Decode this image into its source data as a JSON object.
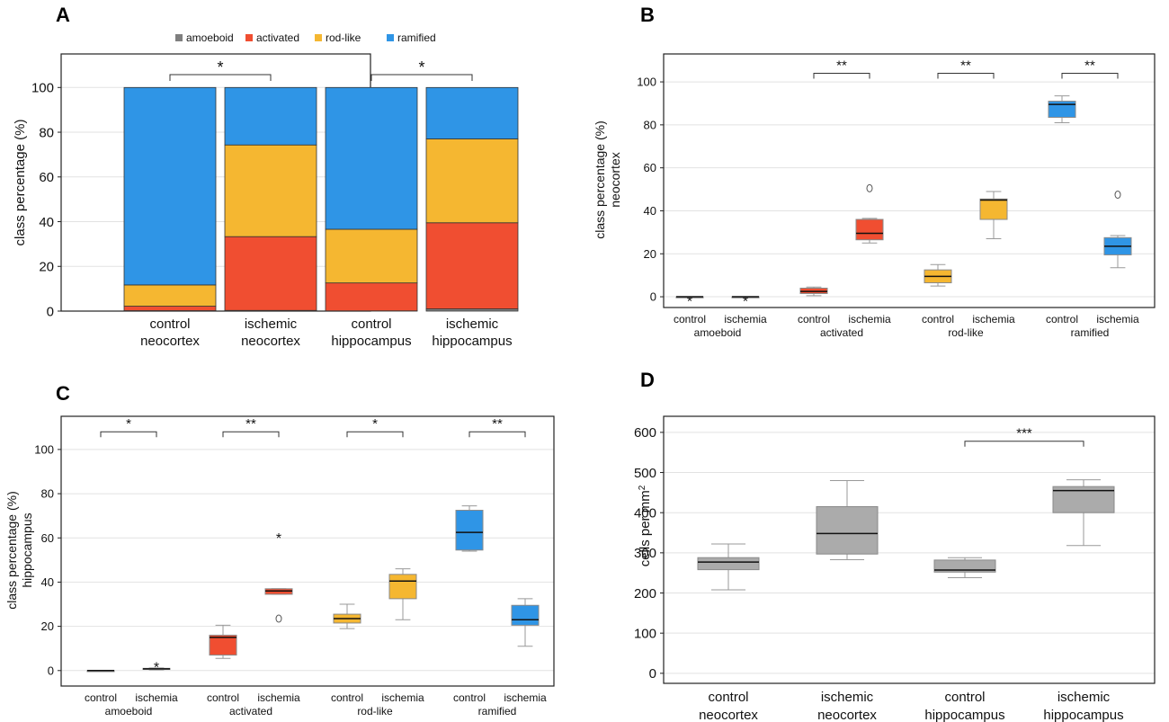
{
  "colors": {
    "amoeboid": "#7f7f7f",
    "activated": "#f04e31",
    "rod_like": "#f5b731",
    "ramified": "#2f95e6",
    "gray_box": "#ababab"
  },
  "chart_data": [
    {
      "id": "A",
      "type": "bar",
      "stacked": true,
      "letter": "A",
      "ylabel": "class percentage (%)",
      "ylim": [
        0,
        115
      ],
      "yticks": [
        0,
        20,
        40,
        60,
        80,
        100
      ],
      "legend_title": "",
      "legend": [
        {
          "key": "amoeboid",
          "label": "amoeboid"
        },
        {
          "key": "activated",
          "label": "activated"
        },
        {
          "key": "rod_like",
          "label": "rod-like"
        },
        {
          "key": "ramified",
          "label": "ramified"
        }
      ],
      "categories": [
        {
          "line1": "control",
          "line2": "neocortex"
        },
        {
          "line1": "ischemic",
          "line2": "neocortex"
        },
        {
          "line1": "control",
          "line2": "hippocampus"
        },
        {
          "line1": "ischemic",
          "line2": "hippocampus"
        }
      ],
      "series": [
        {
          "name": "amoeboid",
          "values": [
            0.2,
            0.3,
            0.1,
            1.0
          ]
        },
        {
          "name": "activated",
          "values": [
            2.0,
            33.0,
            12.5,
            38.5
          ]
        },
        {
          "name": "rod-like",
          "values": [
            9.5,
            41.0,
            24.0,
            37.5
          ]
        },
        {
          "name": "ramified",
          "values": [
            88.3,
            25.7,
            63.4,
            23.0
          ]
        }
      ],
      "significance": [
        {
          "from": 0,
          "to": 1,
          "label": "*"
        },
        {
          "from": 2,
          "to": 3,
          "label": "*"
        }
      ]
    },
    {
      "id": "B",
      "type": "box",
      "letter": "B",
      "ylabel": "class percentage (%)",
      "ylabel2": "neocortex",
      "ylim": [
        -5,
        113
      ],
      "yticks": [
        0,
        20,
        40,
        60,
        80,
        100
      ],
      "boxes": [
        {
          "x": "control",
          "min": 0,
          "q1": 0,
          "median": 0,
          "q3": 0,
          "max": 0,
          "color": "amoeboid",
          "marker": "*",
          "marker_y": -1
        },
        {
          "x": "ischemia",
          "min": 0,
          "q1": 0,
          "median": 0,
          "q3": 0,
          "max": 0,
          "color": "amoeboid",
          "marker": "*",
          "marker_y": -1
        },
        {
          "x": "control",
          "min": 0.5,
          "q1": 1.5,
          "median": 2.5,
          "q3": 4,
          "max": 4.5,
          "color": "activated"
        },
        {
          "x": "ischemia",
          "min": 25,
          "q1": 26.5,
          "median": 29.5,
          "q3": 36,
          "max": 36.5,
          "color": "activated",
          "outlier": 50.5
        },
        {
          "x": "control",
          "min": 5,
          "q1": 6.5,
          "median": 9.5,
          "q3": 12.5,
          "max": 15,
          "color": "rod_like"
        },
        {
          "x": "ischemia",
          "min": 27,
          "q1": 36,
          "median": 45,
          "q3": 45.5,
          "max": 49,
          "color": "rod_like"
        },
        {
          "x": "control",
          "min": 81,
          "q1": 83.5,
          "median": 89.5,
          "q3": 91,
          "max": 93.5,
          "color": "ramified"
        },
        {
          "x": "ischemia",
          "min": 13.5,
          "q1": 19.5,
          "median": 23.5,
          "q3": 27.5,
          "max": 28.5,
          "color": "ramified",
          "outlier": 47.5
        }
      ],
      "groups": [
        "amoeboid",
        "activated",
        "rod-like",
        "ramified"
      ],
      "significance": [
        {
          "from": 2,
          "to": 3,
          "label": "**",
          "y": 104
        },
        {
          "from": 4,
          "to": 5,
          "label": "**",
          "y": 104
        },
        {
          "from": 6,
          "to": 7,
          "label": "**",
          "y": 104
        }
      ]
    },
    {
      "id": "C",
      "type": "box",
      "letter": "C",
      "ylabel": "class percentage (%)",
      "ylabel2": "hippocampus",
      "ylim": [
        -7,
        115
      ],
      "yticks": [
        0,
        20,
        40,
        60,
        80,
        100
      ],
      "boxes": [
        {
          "x": "control",
          "min": 0,
          "q1": 0,
          "median": 0,
          "q3": 0,
          "max": 0,
          "color": "amoeboid"
        },
        {
          "x": "ischemia",
          "min": 0.3,
          "q1": 0.5,
          "median": 0.8,
          "q3": 1,
          "max": 1.2,
          "color": "amoeboid",
          "marker": "*",
          "marker_y": 2.5
        },
        {
          "x": "control",
          "min": 5.5,
          "q1": 7,
          "median": 15,
          "q3": 16,
          "max": 20.5,
          "color": "activated"
        },
        {
          "x": "ischemia",
          "min": 34.5,
          "q1": 34.5,
          "median": 36,
          "q3": 37,
          "max": 37,
          "color": "activated",
          "outlier": 23.5,
          "marker": "*",
          "marker_y": 61
        },
        {
          "x": "control",
          "min": 19,
          "q1": 21.5,
          "median": 23.5,
          "q3": 25.5,
          "max": 30,
          "color": "rod_like"
        },
        {
          "x": "ischemia",
          "min": 23,
          "q1": 32.5,
          "median": 40.5,
          "q3": 43.5,
          "max": 46,
          "color": "rod_like"
        },
        {
          "x": "control",
          "min": 54,
          "q1": 54.5,
          "median": 62.5,
          "q3": 72.5,
          "max": 74.5,
          "color": "ramified"
        },
        {
          "x": "ischemia",
          "min": 11,
          "q1": 20.5,
          "median": 23,
          "q3": 29.5,
          "max": 32.5,
          "color": "ramified"
        }
      ],
      "groups": [
        "amoeboid",
        "activated",
        "rod-like",
        "ramified"
      ],
      "significance": [
        {
          "from": 0,
          "to": 1,
          "label": "*",
          "y": 108
        },
        {
          "from": 2,
          "to": 3,
          "label": "**",
          "y": 108
        },
        {
          "from": 4,
          "to": 5,
          "label": "*",
          "y": 108
        },
        {
          "from": 6,
          "to": 7,
          "label": "**",
          "y": 108
        }
      ]
    },
    {
      "id": "D",
      "type": "box",
      "letter": "D",
      "ylabel": "cells per mm",
      "ylabel_sup": "2",
      "ylim": [
        -25,
        640
      ],
      "yticks": [
        0,
        100,
        200,
        300,
        400,
        500,
        600
      ],
      "categories": [
        {
          "line1": "control",
          "line2": "neocortex"
        },
        {
          "line1": "ischemic",
          "line2": "neocortex"
        },
        {
          "line1": "control",
          "line2": "hippocampus"
        },
        {
          "line1": "ischemic",
          "line2": "hippocampus"
        }
      ],
      "boxes": [
        {
          "min": 208,
          "q1": 258,
          "median": 277,
          "q3": 288,
          "max": 322,
          "color": "gray_box"
        },
        {
          "min": 283,
          "q1": 297,
          "median": 348,
          "q3": 415,
          "max": 480,
          "color": "gray_box"
        },
        {
          "min": 238,
          "q1": 252,
          "median": 257,
          "q3": 282,
          "max": 288,
          "color": "gray_box"
        },
        {
          "min": 318,
          "q1": 400,
          "median": 455,
          "q3": 465,
          "max": 482,
          "color": "gray_box"
        }
      ],
      "significance": [
        {
          "from": 2,
          "to": 3,
          "label": "***",
          "y": 578
        }
      ]
    }
  ]
}
